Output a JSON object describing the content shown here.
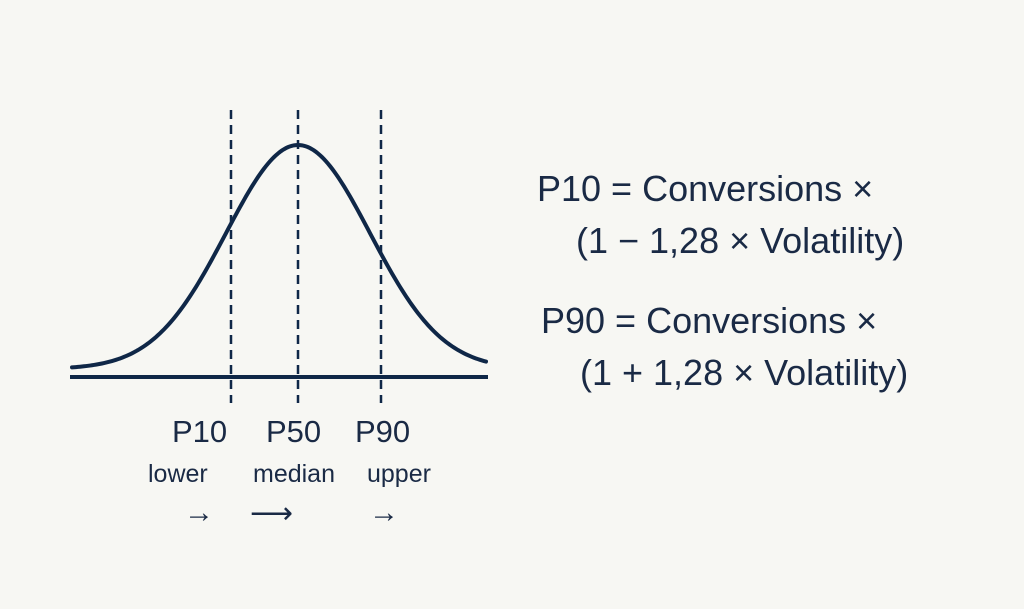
{
  "colors": {
    "background": "#f7f7f3",
    "ink": "#0f2747",
    "text": "#1a2a45"
  },
  "percentiles": [
    {
      "label": "P10",
      "desc": "lower",
      "arrow": "→"
    },
    {
      "label": "P50",
      "desc": "median",
      "arrow": "⟶"
    },
    {
      "label": "P90",
      "desc": "upper",
      "arrow": "→"
    }
  ],
  "formulas": [
    {
      "line1": "P10 = Conversions ×",
      "line2": "(1 − 1,28 × Volatility)"
    },
    {
      "line1": "P90 = Conversions ×",
      "line2": "(1 + 1,28 × Volatility)"
    }
  ]
}
